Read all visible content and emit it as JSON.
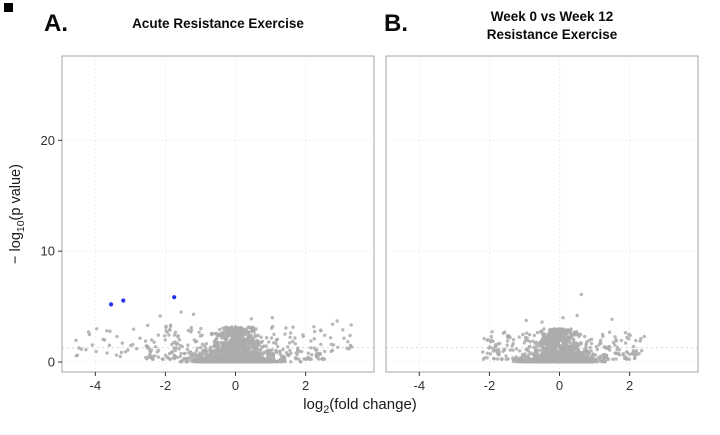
{
  "figure": {
    "panel_a": {
      "label": "A.",
      "title": "Acute Resistance Exercise"
    },
    "panel_b": {
      "label": "B.",
      "title_lines": [
        "Week 0 vs Week 12",
        "Resistance Exercise"
      ]
    },
    "x_axis": {
      "label_prefix": "log",
      "label_sub": "2",
      "label_suffix": "(fold change)",
      "tick_labels": [
        "-4",
        "-2",
        "0",
        "2"
      ]
    },
    "y_axis": {
      "label_prefix": "− log",
      "label_sub": "10",
      "label_suffix": "(p value)",
      "tick_labels": [
        "0",
        "10",
        "20"
      ]
    },
    "colors": {
      "point": "#ababab",
      "highlight": "#2433ee",
      "grid": "#e4e4e4",
      "threshold": "#d8d8d8",
      "panel_border": "#a6a6a6",
      "tick_text": "#333333",
      "title_text": "#111111"
    },
    "point_radius": 1.7,
    "highlight_radius": 2.1
  },
  "chart_data": [
    {
      "type": "scatter",
      "panel": "A",
      "title": "Acute Resistance Exercise",
      "xlabel": "log2(fold change)",
      "ylabel": "-log10(p value)",
      "xlim": [
        -4.95,
        3.95
      ],
      "ylim": [
        -0.9,
        27.6
      ],
      "x_ticks": [
        -4,
        -2,
        0,
        2
      ],
      "y_ticks": [
        0,
        10,
        20
      ],
      "grid": "dotted-major",
      "legend": "none",
      "seed": 7,
      "threshold_line": {
        "y": 1.3
      },
      "point_cloud_clusters": [
        {
          "name": "dense-core",
          "shape": "gauss",
          "count": 1400,
          "xcenter": 0,
          "xspread": 0.55,
          "taper": 0.55,
          "xmin": -1.9,
          "xmax": 1.9,
          "ymin": 0.02,
          "ymax": 3.2,
          "ypow": 3
        },
        {
          "name": "left-arm",
          "shape": "uniform",
          "count": 110,
          "xmin": -2.6,
          "xmax": -0.9,
          "ymin": 0.25,
          "ymax": 3.4,
          "ypow": 2
        },
        {
          "name": "right-arm",
          "shape": "uniform",
          "count": 95,
          "xmin": 0.9,
          "xmax": 2.6,
          "ymin": 0.25,
          "ymax": 3.2,
          "ypow": 2
        },
        {
          "name": "left-tail",
          "shape": "uniform",
          "count": 28,
          "xmin": -4.6,
          "xmax": -2.6,
          "ymin": 0.5,
          "ymax": 3.0,
          "ypow": 1.4
        },
        {
          "name": "right-tail",
          "shape": "uniform",
          "count": 16,
          "xmin": 2.6,
          "xmax": 3.4,
          "ymin": 0.7,
          "ymax": 3.6,
          "ypow": 1.4
        }
      ],
      "notable_points": [
        [
          -1.55,
          4.5
        ],
        [
          -2.15,
          4.15
        ],
        [
          -1.2,
          4.3
        ],
        [
          0.45,
          3.9
        ],
        [
          1.05,
          4.0
        ],
        [
          2.9,
          3.7
        ],
        [
          3.3,
          3.35
        ],
        [
          -4.55,
          1.95
        ]
      ],
      "highlighted_points": {
        "color": "blue",
        "points": [
          [
            -3.55,
            5.2
          ],
          [
            -3.2,
            5.55
          ],
          [
            -1.75,
            5.85
          ]
        ]
      }
    },
    {
      "type": "scatter",
      "panel": "B",
      "title": "Week 0 vs Week 12 Resistance Exercise",
      "xlabel": "log2(fold change)",
      "ylabel": "-log10(p value)",
      "xlim": [
        -4.95,
        3.95
      ],
      "ylim": [
        -0.9,
        27.6
      ],
      "x_ticks": [
        -4,
        -2,
        0,
        2
      ],
      "y_ticks": [
        0,
        10,
        20
      ],
      "grid": "dotted-major",
      "legend": "none",
      "seed": 13,
      "threshold_line": {
        "y": 1.3
      },
      "point_cloud_clusters": [
        {
          "name": "dense-core",
          "shape": "gauss",
          "count": 1250,
          "xcenter": 0,
          "xspread": 0.5,
          "taper": 0.5,
          "xmin": -1.7,
          "xmax": 1.8,
          "ymin": 0.02,
          "ymax": 3.0,
          "ypow": 3
        },
        {
          "name": "left-arm",
          "shape": "uniform",
          "count": 70,
          "xmin": -2.2,
          "xmax": -0.9,
          "ymin": 0.25,
          "ymax": 2.9,
          "ypow": 2
        },
        {
          "name": "right-arm",
          "shape": "uniform",
          "count": 80,
          "xmin": 0.9,
          "xmax": 2.45,
          "ymin": 0.25,
          "ymax": 2.7,
          "ypow": 2
        }
      ],
      "notable_points": [
        [
          0.62,
          6.1
        ],
        [
          0.5,
          4.2
        ],
        [
          -0.95,
          3.75
        ],
        [
          1.5,
          3.85
        ],
        [
          2.3,
          1.9
        ],
        [
          -2.15,
          2.1
        ],
        [
          0.1,
          4.0
        ],
        [
          -0.5,
          3.6
        ],
        [
          -1.6,
          2.6
        ]
      ],
      "highlighted_points": {
        "color": "blue",
        "points": []
      }
    }
  ]
}
